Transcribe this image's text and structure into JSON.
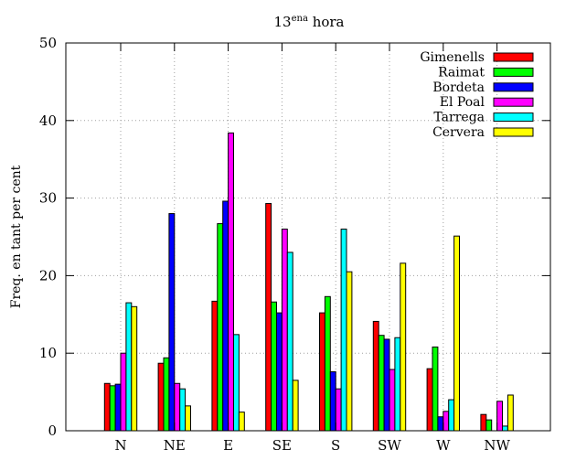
{
  "chart_data": {
    "type": "bar",
    "title_main": "13",
    "title_sup": "ena",
    "title_rest": " hora",
    "xlabel": "",
    "ylabel": "Freq. en tant per cent",
    "ylim": [
      0,
      50
    ],
    "yticks": [
      0,
      10,
      20,
      30,
      40,
      50
    ],
    "grid": true,
    "legend_position": "top-right",
    "categories": [
      "N",
      "NE",
      "E",
      "SE",
      "S",
      "SW",
      "W",
      "NW"
    ],
    "series": [
      {
        "name": "Gimenells",
        "color": "#ff0000",
        "values": [
          6.1,
          8.7,
          16.7,
          29.3,
          15.2,
          14.1,
          8.0,
          2.1
        ]
      },
      {
        "name": "Raimat",
        "color": "#00ff00",
        "values": [
          5.8,
          9.4,
          26.7,
          16.6,
          17.3,
          12.3,
          10.8,
          1.4
        ]
      },
      {
        "name": "Bordeta",
        "color": "#0000ff",
        "values": [
          6.0,
          28.0,
          29.6,
          15.2,
          7.6,
          11.8,
          1.8,
          0.0
        ]
      },
      {
        "name": "El Poal",
        "color": "#ff00ff",
        "values": [
          10.0,
          6.1,
          38.4,
          26.0,
          5.4,
          7.9,
          2.5,
          3.8
        ]
      },
      {
        "name": "Tarrega",
        "color": "#00ffff",
        "values": [
          16.5,
          5.4,
          12.4,
          23.0,
          26.0,
          12.0,
          4.0,
          0.6
        ]
      },
      {
        "name": "Cervera",
        "color": "#ffff00",
        "values": [
          16.0,
          3.2,
          2.4,
          6.5,
          20.5,
          21.6,
          25.1,
          4.6
        ]
      }
    ]
  }
}
